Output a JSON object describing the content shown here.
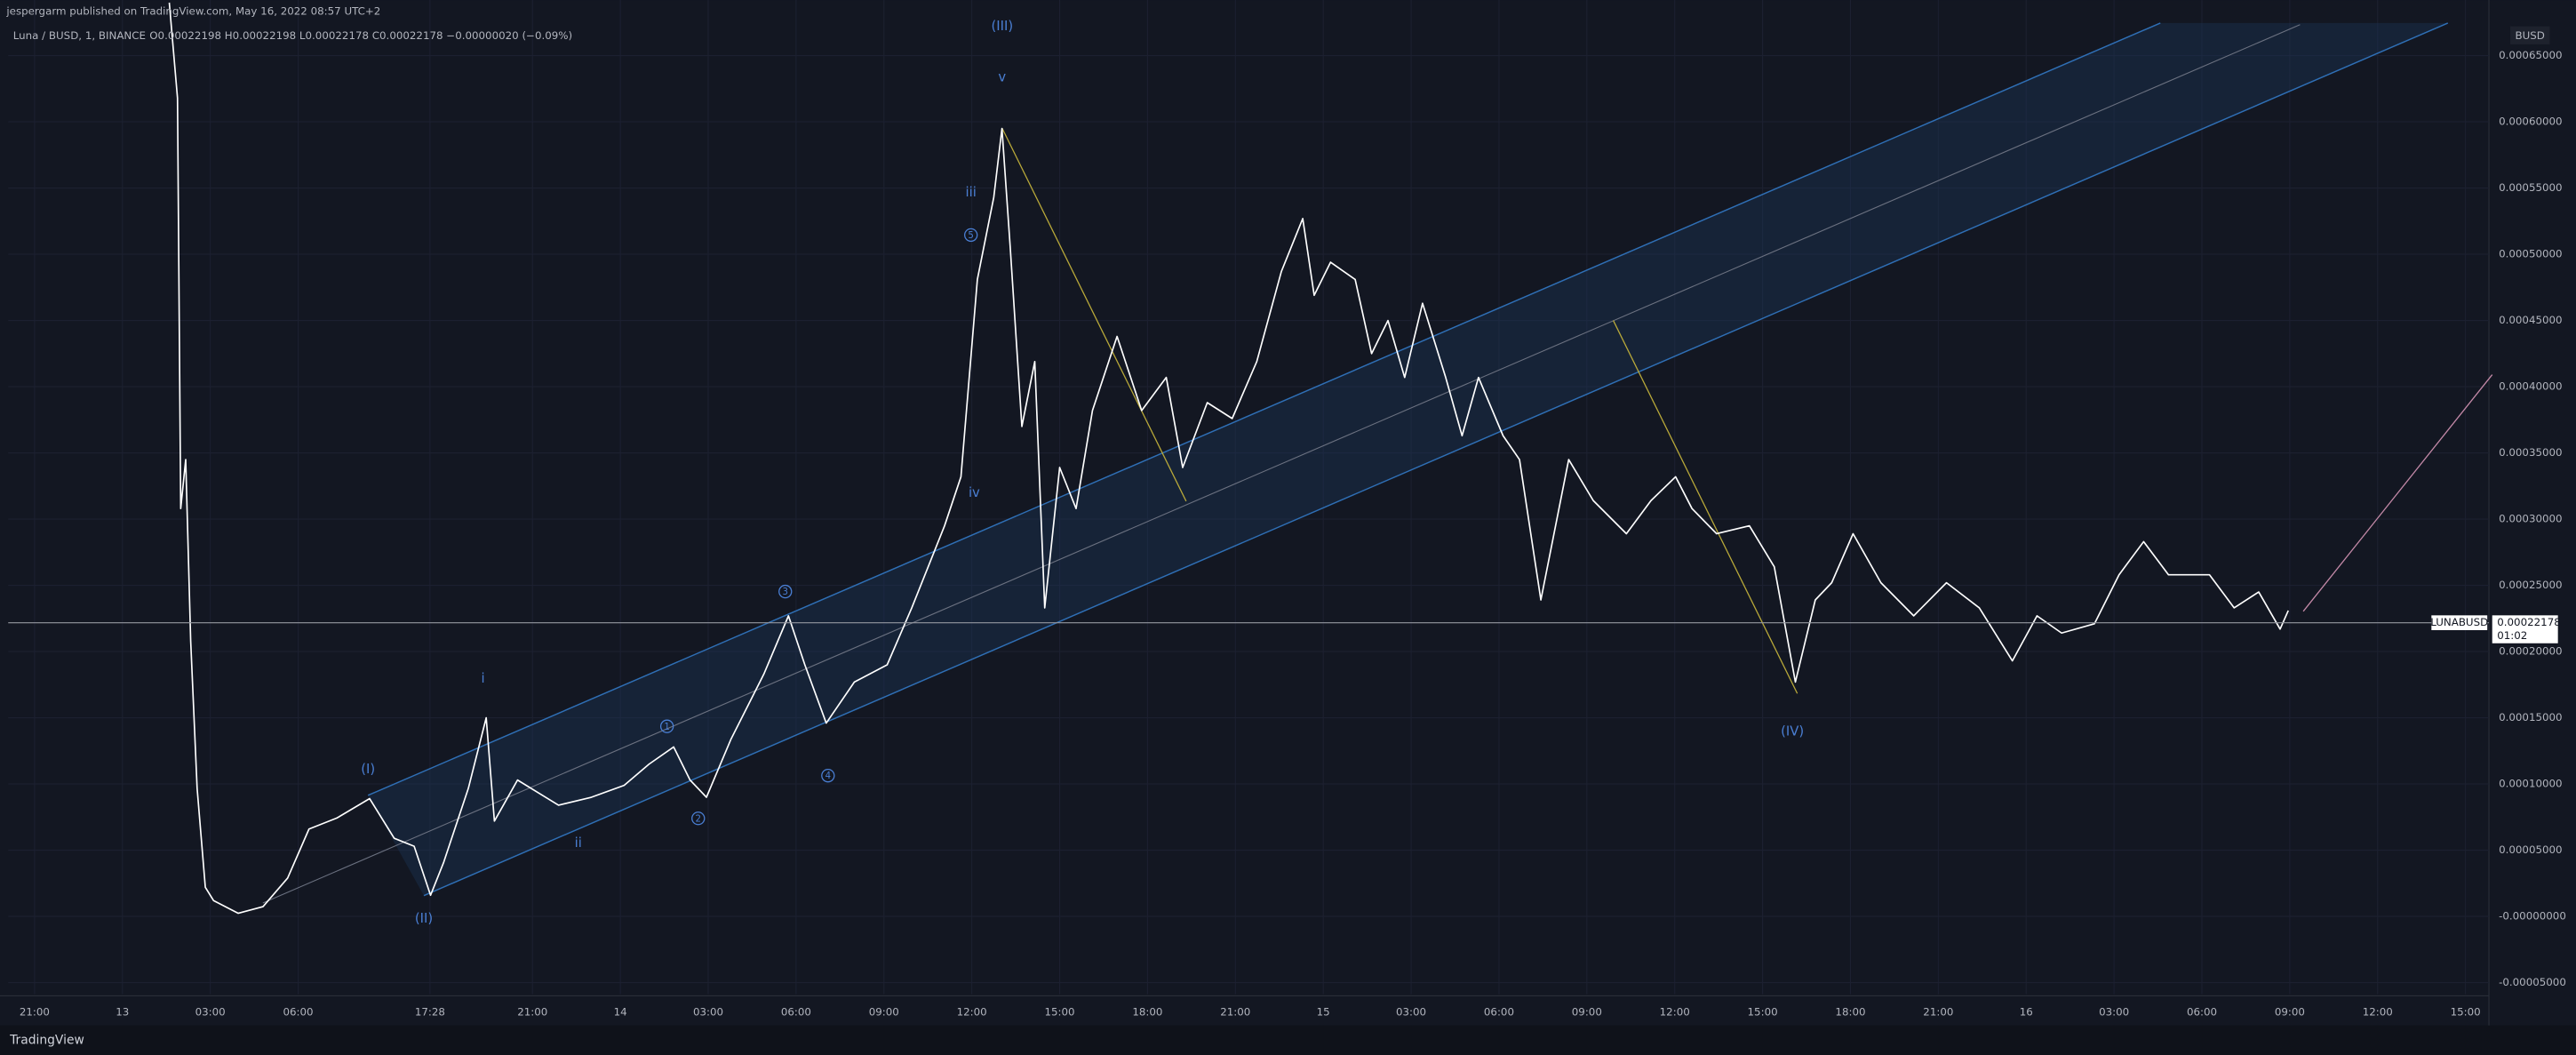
{
  "header": {
    "publisher": "jespergarm published on TradingView.com, May 16, 2022 08:57 UTC+2",
    "symbol": "Luna / BUSD, 1, BINANCE",
    "ohlc": "O0.00022198 H0.00022198 L0.00022178 C0.00022178 −0.00000020 (−0.09%)"
  },
  "footer": {
    "brand": "TradingView"
  },
  "chart_data": {
    "type": "line",
    "color": "#ffffff",
    "grid": true,
    "currency": "BUSD",
    "ticker": "LUNABUSD",
    "last_price": 0.00022178,
    "countdown": "01:02",
    "x": [
      4.6,
      4.88,
      4.99,
      5.16,
      5.33,
      5.55,
      5.83,
      6.11,
      6.95,
      7.8,
      8.64,
      9.37,
      10.32,
      11.44,
      12.28,
      12.96,
      13.52,
      13.97,
      14.81,
      15.42,
      15.7,
      16.49,
      17.89,
      19.01,
      20.13,
      20.98,
      21.82,
      22.38,
      22.94,
      23.78,
      24.9,
      25.74,
      26.3,
      27.03,
      27.99,
      29.11,
      29.95,
      31.07,
      31.63,
      32.19,
      32.75,
      33.03,
      33.31,
      33.71,
      34.15,
      34.49,
      35.0,
      35.56,
      36.12,
      36.96,
      37.8,
      38.64,
      39.2,
      40.04,
      40.89,
      41.73,
      42.57,
      43.3,
      43.69,
      44.25,
      45.09,
      45.65,
      46.21,
      46.78,
      47.39,
      48.18,
      48.74,
      49.3,
      50.14,
      50.7,
      51.43,
      52.38,
      53.22,
      54.35,
      55.19,
      56.03,
      56.59,
      57.43,
      58.55,
      59.4,
      60.12,
      60.8,
      61.36,
      62.09,
      63.04,
      64.16,
      65.28,
      66.4,
      67.53,
      68.37,
      69.21,
      70.33,
      71.17,
      72.01,
      72.86,
      74.26,
      75.1,
      75.94,
      76.67,
      76.95
    ],
    "values": [
      0.00069,
      0.000618,
      0.000308,
      0.000345,
      0.000208,
      9.67e-05,
      2.2e-05,
      1.2e-05,
      2.4e-06,
      7.4e-06,
      2.9e-05,
      6.6e-05,
      7.43e-05,
      8.9e-05,
      5.9e-05,
      5.3e-05,
      1.6e-05,
      4.1e-05,
      9.67e-05,
      0.00015,
      7.2e-05,
      0.000103,
      8.4e-05,
      9e-05,
      9.9e-05,
      0.000115,
      0.000128,
      0.000103,
      9e-05,
      0.000134,
      0.000183,
      0.000227,
      0.00019,
      0.000146,
      0.000177,
      0.00019,
      0.000233,
      0.000295,
      0.000332,
      0.000481,
      0.000543,
      0.000595,
      0.000506,
      0.00037,
      0.000419,
      0.000233,
      0.000339,
      0.000308,
      0.000382,
      0.000438,
      0.000382,
      0.000407,
      0.000339,
      0.000388,
      0.000376,
      0.000419,
      0.000487,
      0.000527,
      0.000469,
      0.000494,
      0.000481,
      0.000425,
      0.00045,
      0.000407,
      0.000463,
      0.000407,
      0.000363,
      0.000407,
      0.000363,
      0.000345,
      0.000239,
      0.000345,
      0.000314,
      0.000289,
      0.000314,
      0.000332,
      0.000308,
      0.000289,
      0.000295,
      0.000264,
      0.000177,
      0.000239,
      0.000252,
      0.000289,
      0.000252,
      0.000227,
      0.000252,
      0.000233,
      0.000193,
      0.000227,
      0.000214,
      0.000221,
      0.000258,
      0.000283,
      0.000258,
      0.000258,
      0.000233,
      0.000245,
      0.000217,
      0.000231
    ],
    "xlim": [
      -0.9,
      83.8
    ],
    "xticks": [
      {
        "value": 0,
        "label": "21:00"
      },
      {
        "value": 3,
        "label": "13"
      },
      {
        "value": 6,
        "label": "03:00"
      },
      {
        "value": 9,
        "label": "06:00"
      },
      {
        "value": 13.5,
        "label": "17:28"
      },
      {
        "value": 17,
        "label": "21:00"
      },
      {
        "value": 20,
        "label": "14"
      },
      {
        "value": 23,
        "label": "03:00"
      },
      {
        "value": 26,
        "label": "06:00"
      },
      {
        "value": 29,
        "label": "09:00"
      },
      {
        "value": 32,
        "label": "12:00"
      },
      {
        "value": 35,
        "label": "15:00"
      },
      {
        "value": 38,
        "label": "18:00"
      },
      {
        "value": 41,
        "label": "21:00"
      },
      {
        "value": 44,
        "label": "15"
      },
      {
        "value": 47,
        "label": "03:00"
      },
      {
        "value": 50,
        "label": "06:00"
      },
      {
        "value": 53,
        "label": "09:00"
      },
      {
        "value": 56,
        "label": "12:00"
      },
      {
        "value": 59,
        "label": "15:00"
      },
      {
        "value": 62,
        "label": "18:00"
      },
      {
        "value": 65,
        "label": "21:00"
      },
      {
        "value": 68,
        "label": "16"
      },
      {
        "value": 71,
        "label": "03:00"
      },
      {
        "value": 74,
        "label": "06:00"
      },
      {
        "value": 77,
        "label": "09:00"
      },
      {
        "value": 80,
        "label": "12:00"
      },
      {
        "value": 83,
        "label": "15:00"
      }
    ],
    "ylim": [
      -5.87e-05,
      0.000692
    ],
    "yticks": [
      {
        "value": 0.00065,
        "label": "0.00065000"
      },
      {
        "value": 0.0006,
        "label": "0.00060000"
      },
      {
        "value": 0.00055,
        "label": "0.00055000"
      },
      {
        "value": 0.0005,
        "label": "0.00050000"
      },
      {
        "value": 0.00045,
        "label": "0.00045000"
      },
      {
        "value": 0.0004,
        "label": "0.00040000"
      },
      {
        "value": 0.00035,
        "label": "0.00035000"
      },
      {
        "value": 0.0003,
        "label": "0.00030000"
      },
      {
        "value": 0.00025,
        "label": "0.00025000"
      },
      {
        "value": 0.0002,
        "label": "0.00020000"
      },
      {
        "value": 0.00015,
        "label": "0.00015000"
      },
      {
        "value": 0.0001,
        "label": "0.00010000"
      },
      {
        "value": 5e-05,
        "label": "0.00005000"
      },
      {
        "value": 0,
        "label": "-0.00000000"
      },
      {
        "value": -5e-05,
        "label": "-0.00005000"
      }
    ],
    "annotations": [
      "(I)",
      "(II)",
      "(III)",
      "(IV)",
      "i",
      "ii",
      "iii",
      "iv",
      "v",
      "1",
      "2",
      "3",
      "4",
      "5"
    ]
  }
}
